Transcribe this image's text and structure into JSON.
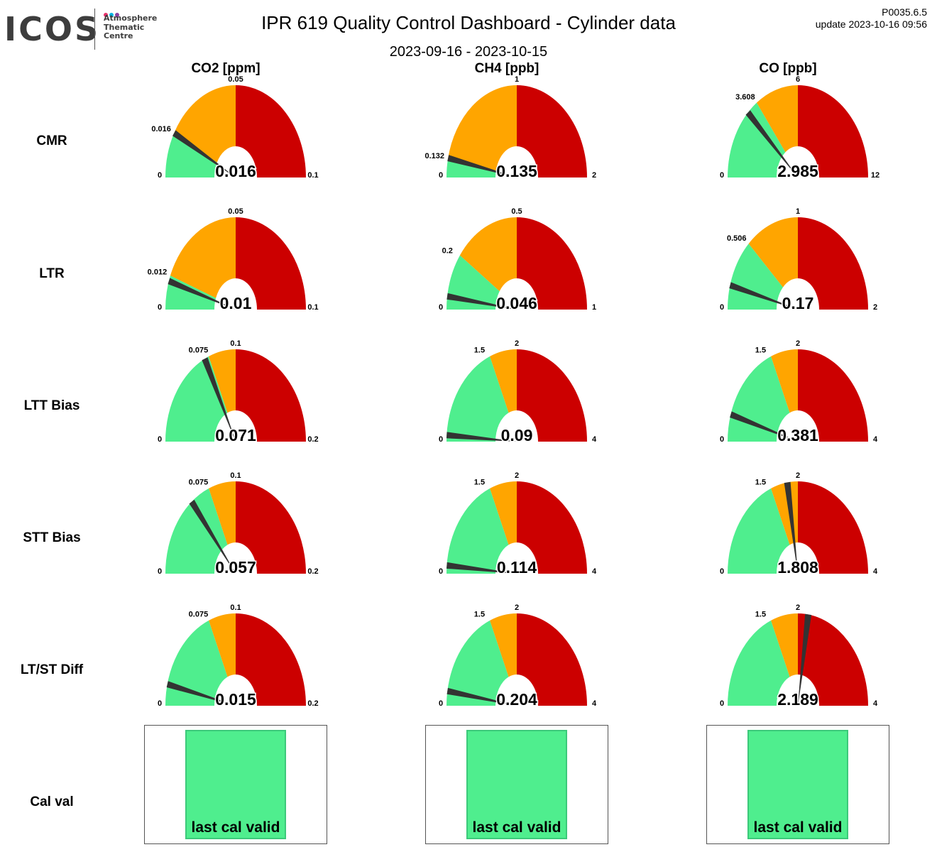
{
  "header": {
    "logo_text": "ICOS",
    "logo_subtitle": [
      "Atmosphere",
      "Thematic",
      "Centre"
    ],
    "logo_dot_colors": [
      "#e8336d",
      "#00b3e3",
      "#8a3ea0"
    ],
    "title": "IPR 619 Quality Control Dashboard - Cylinder data",
    "date_range": "2023-09-16 - 2023-10-15",
    "version": "P0035.6.5",
    "update": "update  2023-10-16 09:56"
  },
  "colors": {
    "green": "#4fee8e",
    "orange": "#ffa500",
    "red": "#cc0000",
    "needle": "#333333",
    "status_fill": "#4fee8e",
    "status_border": "#3cc97a"
  },
  "columns": [
    "CO2 [ppm]",
    "CH4 [ppb]",
    "CO [ppb]"
  ],
  "rows": [
    "CMR",
    "LTR",
    "LTT Bias",
    "STT Bias",
    "LT/ST Diff",
    "Cal val"
  ],
  "chart_data": {
    "type": "gauge",
    "gauges": [
      {
        "row": "CMR",
        "column": "CO2 [ppm]",
        "min": "0",
        "max": "0.1",
        "orange_start": 0.016,
        "orange_label": "0.016",
        "red_start": 0.05,
        "red_label": "0.05",
        "needle": 0.016,
        "value_label": "0.016"
      },
      {
        "row": "CMR",
        "column": "CH4 [ppb]",
        "min": "0",
        "max": "2",
        "orange_start": 0.132,
        "orange_label": "0.132",
        "red_start": 1,
        "red_label": "1",
        "needle": 0.135,
        "value_label": "0.135"
      },
      {
        "row": "CMR",
        "column": "CO [ppb]",
        "min": "0",
        "max": "12",
        "orange_start": 3.608,
        "orange_label": "3.608",
        "red_start": 6,
        "red_label": "6",
        "needle": 2.985,
        "value_label": "2.985"
      },
      {
        "row": "LTR",
        "column": "CO2 [ppm]",
        "min": "0",
        "max": "0.1",
        "orange_start": 0.012,
        "orange_label": "0.012",
        "red_start": 0.05,
        "red_label": "0.05",
        "needle": 0.01,
        "value_label": "0.01"
      },
      {
        "row": "LTR",
        "column": "CH4 [ppb]",
        "min": "0",
        "max": "1",
        "orange_start": 0.2,
        "orange_label": "0.2",
        "red_start": 0.5,
        "red_label": "0.5",
        "needle": 0.046,
        "value_label": "0.046"
      },
      {
        "row": "LTR",
        "column": "CO [ppb]",
        "min": "0",
        "max": "2",
        "orange_start": 0.506,
        "orange_label": "0.506",
        "red_start": 1,
        "red_label": "1",
        "needle": 0.17,
        "value_label": "0.17"
      },
      {
        "row": "LTT Bias",
        "column": "CO2 [ppm]",
        "min": "0",
        "max": "0.2",
        "orange_start": 0.075,
        "orange_label": "0.075",
        "red_start": 0.1,
        "red_label": "0.1",
        "needle": 0.071,
        "value_label": "0.071"
      },
      {
        "row": "LTT Bias",
        "column": "CH4 [ppb]",
        "min": "0",
        "max": "4",
        "orange_start": 1.5,
        "orange_label": "1.5",
        "red_start": 2,
        "red_label": "2",
        "needle": 0.09,
        "value_label": "0.09"
      },
      {
        "row": "LTT Bias",
        "column": "CO [ppb]",
        "min": "0",
        "max": "4",
        "orange_start": 1.5,
        "orange_label": "1.5",
        "red_start": 2,
        "red_label": "2",
        "needle": 0.381,
        "value_label": "0.381"
      },
      {
        "row": "STT Bias",
        "column": "CO2 [ppm]",
        "min": "0",
        "max": "0.2",
        "orange_start": 0.075,
        "orange_label": "0.075",
        "red_start": 0.1,
        "red_label": "0.1",
        "needle": 0.057,
        "value_label": "0.057"
      },
      {
        "row": "STT Bias",
        "column": "CH4 [ppb]",
        "min": "0",
        "max": "4",
        "orange_start": 1.5,
        "orange_label": "1.5",
        "red_start": 2,
        "red_label": "2",
        "needle": 0.114,
        "value_label": "0.114"
      },
      {
        "row": "STT Bias",
        "column": "CO [ppb]",
        "min": "0",
        "max": "4",
        "orange_start": 1.5,
        "orange_label": "1.5",
        "red_start": 2,
        "red_label": "2",
        "needle": 1.808,
        "value_label": "1.808"
      },
      {
        "row": "LT/ST Diff",
        "column": "CO2 [ppm]",
        "min": "0",
        "max": "0.2",
        "orange_start": 0.075,
        "orange_label": "0.075",
        "red_start": 0.1,
        "red_label": "0.1",
        "needle": 0.015,
        "value_label": "0.015"
      },
      {
        "row": "LT/ST Diff",
        "column": "CH4 [ppb]",
        "min": "0",
        "max": "4",
        "orange_start": 1.5,
        "orange_label": "1.5",
        "red_start": 2,
        "red_label": "2",
        "needle": 0.204,
        "value_label": "0.204"
      },
      {
        "row": "LT/ST Diff",
        "column": "CO [ppb]",
        "min": "0",
        "max": "4",
        "orange_start": 1.5,
        "orange_label": "1.5",
        "red_start": 2,
        "red_label": "2",
        "needle": 2.189,
        "value_label": "2.189"
      }
    ],
    "cal_val": [
      {
        "column": "CO2 [ppm]",
        "status": "last cal valid"
      },
      {
        "column": "CH4 [ppb]",
        "status": "last cal valid"
      },
      {
        "column": "CO [ppb]",
        "status": "last cal valid"
      }
    ]
  }
}
